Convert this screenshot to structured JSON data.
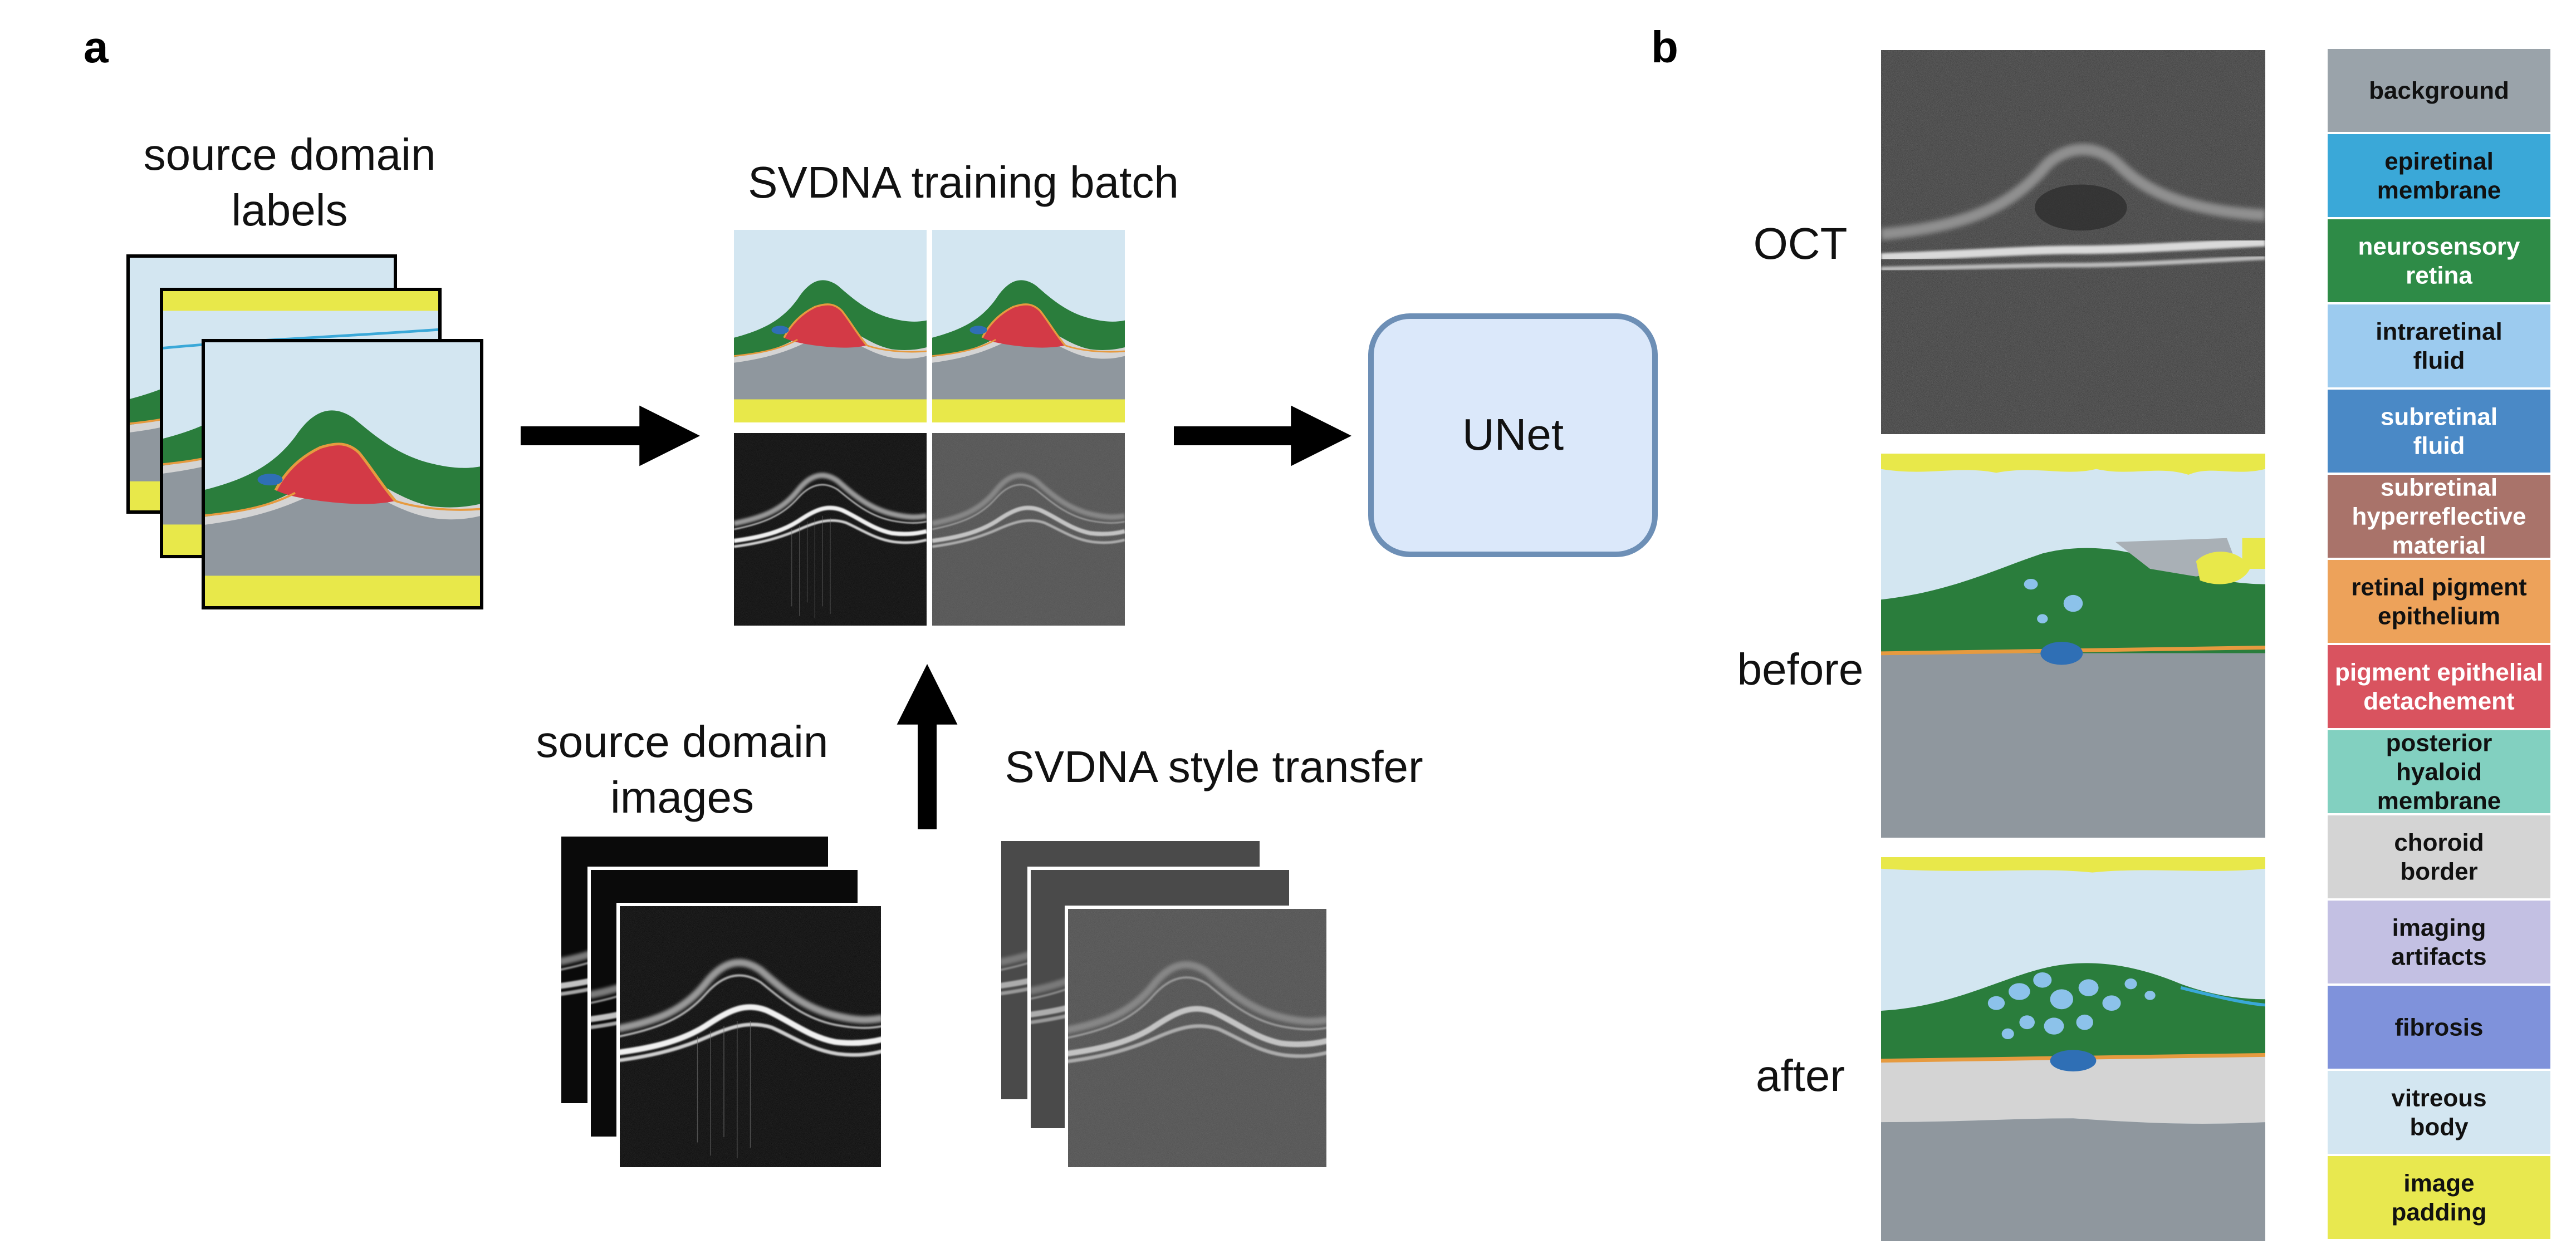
{
  "panel_a": {
    "letter": "a",
    "labels_stack_title": [
      "source domain",
      "labels"
    ],
    "batch_title": "SVDNA training batch",
    "images_stack_title": [
      "source domain",
      "images"
    ],
    "transfer_title": "SVDNA style transfer",
    "unet_label": "UNet"
  },
  "panel_b": {
    "letter": "b",
    "row_labels": [
      "OCT",
      "before",
      "after"
    ]
  },
  "legend": [
    {
      "lines": [
        "background"
      ],
      "color": "#9aa3aa",
      "text_color": "#111111"
    },
    {
      "lines": [
        "epiretinal",
        "membrane"
      ],
      "color": "#3aa8d8",
      "text_color": "#111111"
    },
    {
      "lines": [
        "neurosensory",
        "retina"
      ],
      "color": "#2e8b47",
      "text_color": "#ffffff"
    },
    {
      "lines": [
        "intraretinal",
        "fluid"
      ],
      "color": "#9ccbef",
      "text_color": "#111111"
    },
    {
      "lines": [
        "subretinal",
        "fluid"
      ],
      "color": "#4a89c6",
      "text_color": "#ffffff"
    },
    {
      "lines": [
        "subretinal",
        "hyperreflective",
        "material"
      ],
      "color": "#a9736a",
      "text_color": "#ffffff"
    },
    {
      "lines": [
        "retinal pigment",
        "epithelium"
      ],
      "color": "#eda25a",
      "text_color": "#111111"
    },
    {
      "lines": [
        "pigment epithelial",
        "detachement"
      ],
      "color": "#d9535f",
      "text_color": "#ffffff"
    },
    {
      "lines": [
        "posterior",
        "hyaloid",
        "membrane"
      ],
      "color": "#82d0c0",
      "text_color": "#111111"
    },
    {
      "lines": [
        "choroid",
        "border"
      ],
      "color": "#d4d4d4",
      "text_color": "#111111"
    },
    {
      "lines": [
        "imaging",
        "artifacts"
      ],
      "color": "#c3c0e3",
      "text_color": "#111111"
    },
    {
      "lines": [
        "fibrosis"
      ],
      "color": "#7f92db",
      "text_color": "#111111"
    },
    {
      "lines": [
        "vitreous",
        "body"
      ],
      "color": "#d3e6f1",
      "text_color": "#111111"
    },
    {
      "lines": [
        "image",
        "padding"
      ],
      "color": "#e8e84f",
      "text_color": "#111111"
    }
  ],
  "colors": {
    "vitreous": "#d3e6f1",
    "retina": "#2a7d3c",
    "ped": "#d33a46",
    "rpe": "#e69a3f",
    "choroid": "#8f979e",
    "choroid_border": "#d4d4d4",
    "padding": "#e8e84a",
    "srf": "#2f6fb5",
    "irf": "#8cc2ea",
    "artifact": "#a9b0b6",
    "unet_fill": "#dbe8fa",
    "unet_stroke": "#6d8fb6",
    "arrow": "#000000"
  }
}
